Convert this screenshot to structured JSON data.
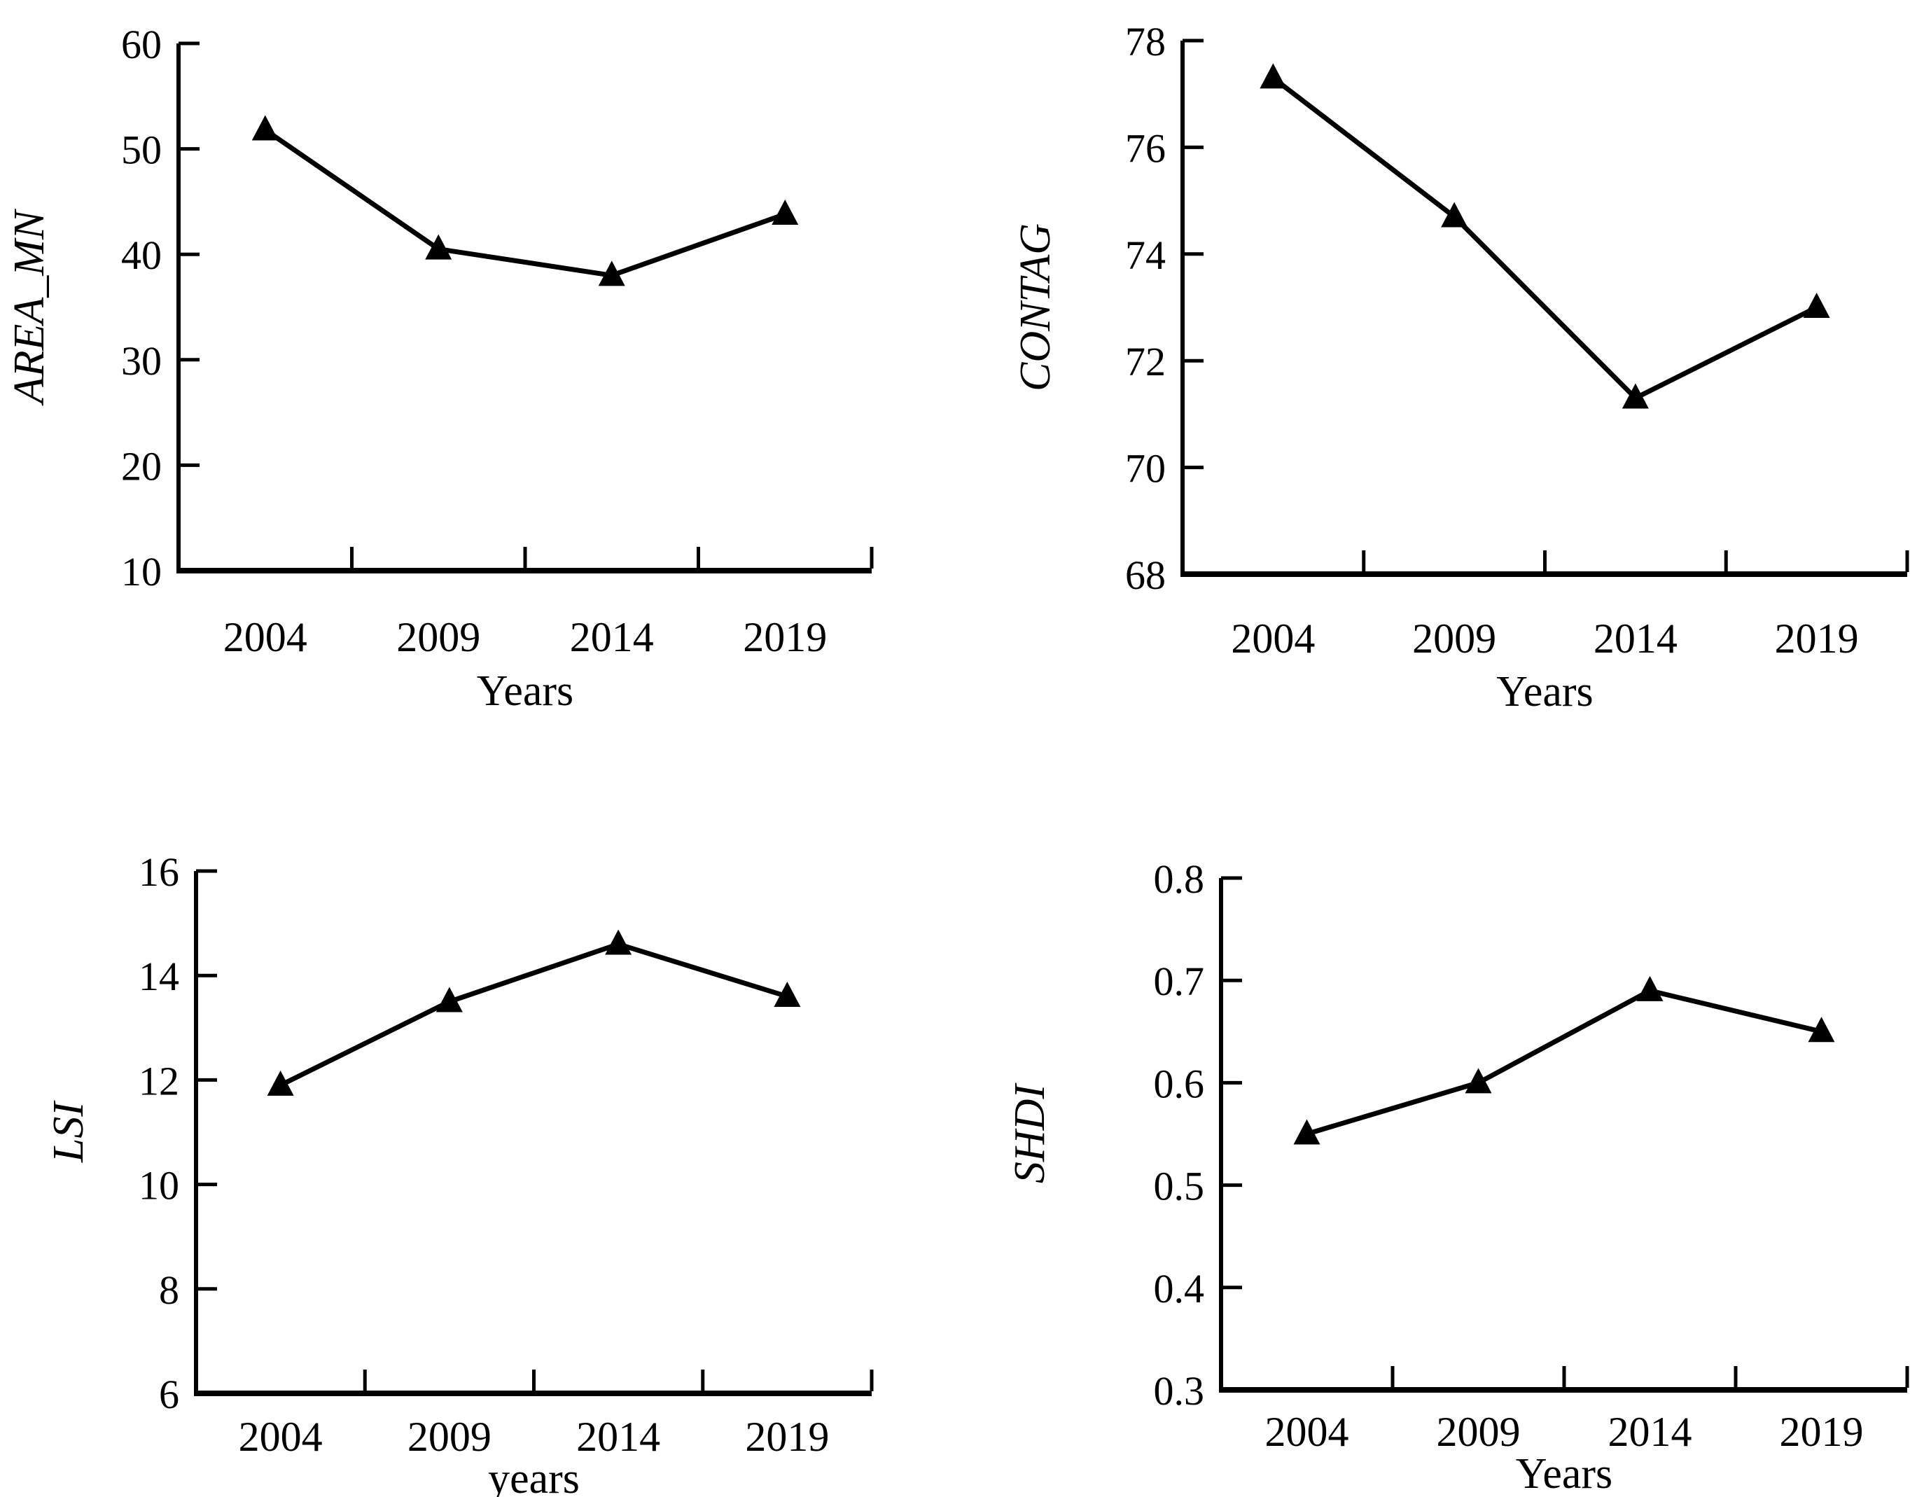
{
  "page": {
    "background_color": "#ffffff",
    "foreground_color": "#000000",
    "description": "Four line charts of landscape pattern indices for years 2004-2019"
  },
  "chart_data": [
    {
      "id": "area_mn",
      "type": "line",
      "title": "",
      "ylabel": "AREA_MN",
      "xlabel": "Years",
      "categories": [
        "2004",
        "2009",
        "2014",
        "2019"
      ],
      "values": [
        51.8,
        40.5,
        38.0,
        43.8
      ],
      "ylim": [
        10,
        60
      ],
      "ytick_step": 10,
      "ytick_labels": [
        "10",
        "20",
        "30",
        "40",
        "50",
        "60"
      ],
      "grid": false,
      "legend_position": "none",
      "marker": "filled-triangle-up",
      "line_color": "#000000",
      "marker_color": "#000000"
    },
    {
      "id": "contag",
      "type": "line",
      "title": "",
      "ylabel": "CONTAG",
      "xlabel": "Years",
      "categories": [
        "2004",
        "2009",
        "2014",
        "2019"
      ],
      "values": [
        77.3,
        74.7,
        71.3,
        73.0
      ],
      "ylim": [
        68,
        78
      ],
      "ytick_step": 2,
      "ytick_labels": [
        "68",
        "70",
        "72",
        "74",
        "76",
        "78"
      ],
      "grid": false,
      "legend_position": "none",
      "marker": "filled-triangle-up",
      "line_color": "#000000",
      "marker_color": "#000000"
    },
    {
      "id": "lsi",
      "type": "line",
      "title": "",
      "ylabel": "LSI",
      "xlabel": "years",
      "categories": [
        "2004",
        "2009",
        "2014",
        "2019"
      ],
      "values": [
        11.9,
        13.5,
        14.6,
        13.6
      ],
      "ylim": [
        6,
        16
      ],
      "ytick_step": 2,
      "ytick_labels": [
        "6",
        "8",
        "10",
        "12",
        "14",
        "16"
      ],
      "grid": false,
      "legend_position": "none",
      "marker": "filled-triangle-up",
      "line_color": "#000000",
      "marker_color": "#000000"
    },
    {
      "id": "shdi",
      "type": "line",
      "title": "",
      "ylabel": "SHDI",
      "xlabel": "Years",
      "categories": [
        "2004",
        "2009",
        "2014",
        "2019"
      ],
      "values": [
        0.55,
        0.6,
        0.69,
        0.65
      ],
      "ylim": [
        0.3,
        0.8
      ],
      "ytick_step": 0.1,
      "ytick_labels": [
        "0.3",
        "0.4",
        "0.5",
        "0.6",
        "0.7",
        "0.8"
      ],
      "grid": false,
      "legend_position": "none",
      "marker": "filled-triangle-up",
      "line_color": "#000000",
      "marker_color": "#000000"
    }
  ]
}
